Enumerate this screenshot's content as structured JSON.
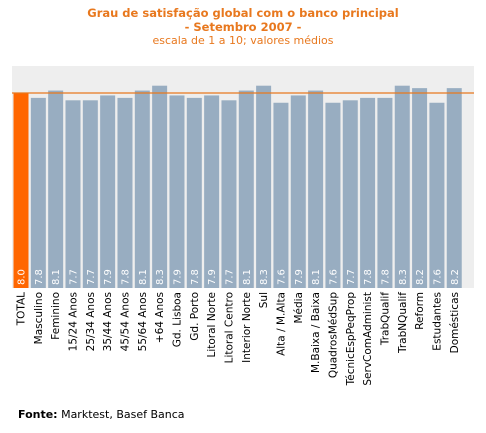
{
  "header": {
    "title_line1": "Grau de satisfação global com o banco principal",
    "title_line2": "- Setembro 2007 -",
    "subtitle": "escala de 1 a 10; valores médios"
  },
  "footer": {
    "source_label": "Fonte:",
    "source_text": "Marktest, Basef Banca"
  },
  "colors": {
    "background_plot": "#eeeeee",
    "bar": "#98adc1",
    "highlight_bar": "#ff6600",
    "reference_line": "#e8781e",
    "title": "#e8781e"
  },
  "chart_data": {
    "type": "bar",
    "title": "Grau de satisfação global com o banco principal",
    "subtitle": "escala de 1 a 10; valores médios",
    "categories": [
      "TOTAL",
      "Masculino",
      "Feminino",
      "15/24 Anos",
      "25/34 Anos",
      "35/44 Anos",
      "45/54 Anos",
      "55/64 Anos",
      "+64 Anos",
      "Gd. Lisboa",
      "Gd. Porto",
      "Litoral Norte",
      "Litoral Centro",
      "Interior Norte",
      "Sul",
      "Alta / M.Alta",
      "Média",
      "M.Baixa / Baixa",
      "QuadrosMédSup",
      "TécnicEspPeqProp",
      "ServComAdminist",
      "TrabQualif",
      "TrabNQualif",
      "Reform",
      "Estudantes",
      "Domésticas"
    ],
    "values": [
      8.0,
      7.8,
      8.1,
      7.7,
      7.7,
      7.9,
      7.8,
      8.1,
      8.3,
      7.9,
      7.8,
      7.9,
      7.7,
      8.1,
      8.3,
      7.6,
      7.9,
      8.1,
      7.6,
      7.7,
      7.8,
      7.8,
      8.3,
      8.2,
      7.6,
      8.2
    ],
    "value_labels": [
      "8.0",
      "7.8",
      "8.1",
      "7.7",
      "7.7",
      "7.9",
      "7.8",
      "8.1",
      "8.3",
      "7.9",
      "7.8",
      "7.9",
      "7.7",
      "8.1",
      "8.3",
      "7.6",
      "7.9",
      "8.1",
      "7.6",
      "7.7",
      "7.8",
      "7.8",
      "8.3",
      "8.2",
      "7.6",
      "8.2"
    ],
    "highlight_index": 0,
    "reference_value": 8.0,
    "ylim": [
      0,
      9
    ],
    "xlabel": "",
    "ylabel": ""
  }
}
